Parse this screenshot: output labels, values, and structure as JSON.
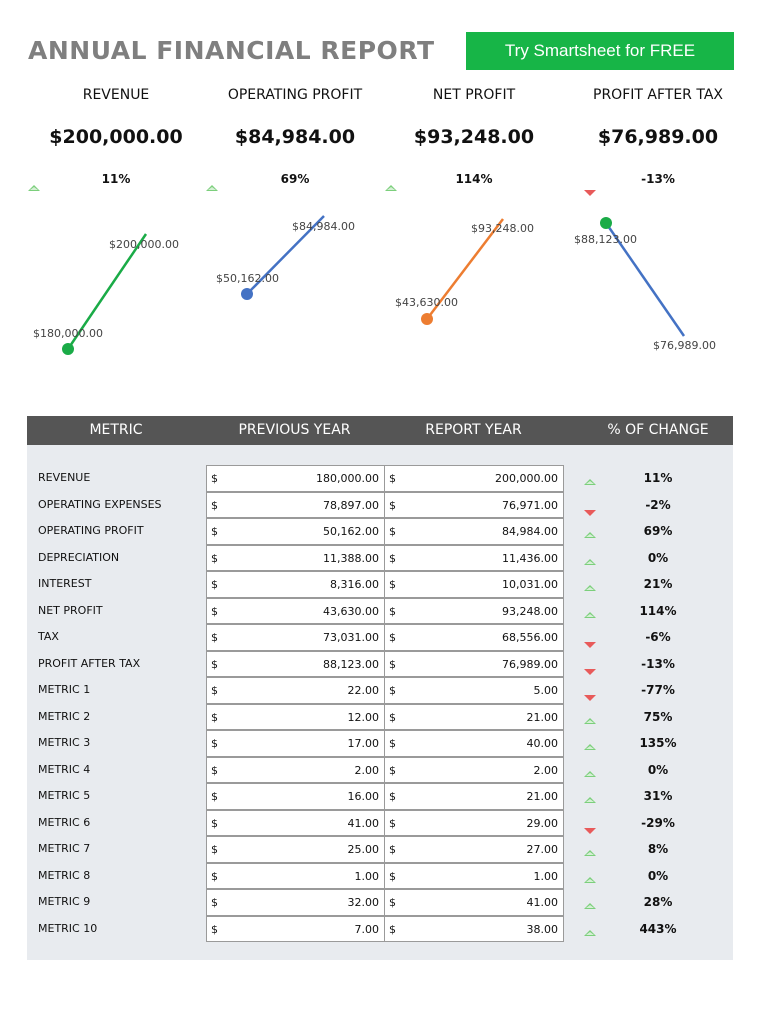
{
  "header": {
    "title": "ANNUAL FINANCIAL REPORT",
    "cta_label": "Try Smartsheet for FREE"
  },
  "kpis": [
    {
      "label": "REVENUE",
      "value": "$200,000.00",
      "change": "11%",
      "direction": "up",
      "prev_label": "$180,000.00",
      "curr_label": "$200,000.00",
      "prev": 180000,
      "curr": 200000,
      "color": "#1aab47"
    },
    {
      "label": "OPERATING PROFIT",
      "value": "$84,984.00",
      "change": "69%",
      "direction": "up",
      "prev_label": "$50,162.00",
      "curr_label": "$84,984.00",
      "prev": 50162,
      "curr": 84984,
      "color": "#4472c4"
    },
    {
      "label": "NET PROFIT",
      "value": "$93,248.00",
      "change": "114%",
      "direction": "up",
      "prev_label": "$43,630.00",
      "curr_label": "$93,248.00",
      "prev": 43630,
      "curr": 93248,
      "color": "#ed7d31"
    },
    {
      "label": "PROFIT AFTER TAX",
      "value": "$76,989.00",
      "change": "-13%",
      "direction": "down",
      "prev_label": "$88,123.00",
      "curr_label": "$76,989.00",
      "prev": 88123,
      "curr": 76989,
      "color": "#4472c4",
      "marker_color": "#1aab47"
    }
  ],
  "table": {
    "headers": [
      "METRIC",
      "PREVIOUS YEAR",
      "REPORT YEAR",
      "% OF CHANGE"
    ],
    "currency": "$",
    "rows": [
      {
        "metric": "REVENUE",
        "prev": "180,000.00",
        "curr": "200,000.00",
        "change": "11%",
        "direction": "up"
      },
      {
        "metric": "OPERATING EXPENSES",
        "prev": "78,897.00",
        "curr": "76,971.00",
        "change": "-2%",
        "direction": "down"
      },
      {
        "metric": "OPERATING PROFIT",
        "prev": "50,162.00",
        "curr": "84,984.00",
        "change": "69%",
        "direction": "up"
      },
      {
        "metric": "DEPRECIATION",
        "prev": "11,388.00",
        "curr": "11,436.00",
        "change": "0%",
        "direction": "up"
      },
      {
        "metric": "INTEREST",
        "prev": "8,316.00",
        "curr": "10,031.00",
        "change": "21%",
        "direction": "up"
      },
      {
        "metric": "NET PROFIT",
        "prev": "43,630.00",
        "curr": "93,248.00",
        "change": "114%",
        "direction": "up"
      },
      {
        "metric": "TAX",
        "prev": "73,031.00",
        "curr": "68,556.00",
        "change": "-6%",
        "direction": "down"
      },
      {
        "metric": "PROFIT AFTER TAX",
        "prev": "88,123.00",
        "curr": "76,989.00",
        "change": "-13%",
        "direction": "down"
      },
      {
        "metric": "METRIC 1",
        "prev": "22.00",
        "curr": "5.00",
        "change": "-77%",
        "direction": "down"
      },
      {
        "metric": "METRIC 2",
        "prev": "12.00",
        "curr": "21.00",
        "change": "75%",
        "direction": "up"
      },
      {
        "metric": "METRIC 3",
        "prev": "17.00",
        "curr": "40.00",
        "change": "135%",
        "direction": "up"
      },
      {
        "metric": "METRIC 4",
        "prev": "2.00",
        "curr": "2.00",
        "change": "0%",
        "direction": "up"
      },
      {
        "metric": "METRIC 5",
        "prev": "16.00",
        "curr": "21.00",
        "change": "31%",
        "direction": "up"
      },
      {
        "metric": "METRIC 6",
        "prev": "41.00",
        "curr": "29.00",
        "change": "-29%",
        "direction": "down"
      },
      {
        "metric": "METRIC 7",
        "prev": "25.00",
        "curr": "27.00",
        "change": "8%",
        "direction": "up"
      },
      {
        "metric": "METRIC 8",
        "prev": "1.00",
        "curr": "1.00",
        "change": "0%",
        "direction": "up"
      },
      {
        "metric": "METRIC 9",
        "prev": "32.00",
        "curr": "41.00",
        "change": "28%",
        "direction": "up"
      },
      {
        "metric": "METRIC 10",
        "prev": "7.00",
        "curr": "38.00",
        "change": "443%",
        "direction": "up"
      }
    ]
  },
  "icons": {
    "up": "triangle-up-icon",
    "down": "triangle-down-icon"
  },
  "colors": {
    "up": "#7ccf7c",
    "down": "#e85a5a",
    "cta": "#17b547",
    "header_bg": "#555555",
    "panel_bg": "#e8ebef"
  }
}
